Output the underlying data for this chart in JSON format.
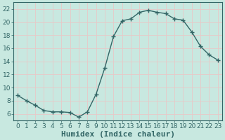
{
  "x": [
    0,
    1,
    2,
    3,
    4,
    5,
    6,
    7,
    8,
    9,
    10,
    11,
    12,
    13,
    14,
    15,
    16,
    17,
    18,
    19,
    20,
    21,
    22,
    23
  ],
  "y": [
    8.8,
    8.0,
    7.3,
    6.5,
    6.3,
    6.3,
    6.2,
    5.5,
    6.3,
    9.0,
    13.0,
    17.8,
    20.2,
    20.5,
    21.5,
    21.8,
    21.5,
    21.3,
    20.5,
    20.3,
    18.5,
    16.3,
    15.0,
    14.2
  ],
  "line_color": "#336666",
  "marker": "+",
  "marker_size": 4,
  "marker_linewidth": 1.0,
  "line_width": 1.0,
  "bg_color": "#c8e8e0",
  "grid_color": "#e8c8c8",
  "xlabel": "Humidex (Indice chaleur)",
  "xlim": [
    -0.5,
    23.5
  ],
  "ylim": [
    5.0,
    23.0
  ],
  "yticks": [
    6,
    8,
    10,
    12,
    14,
    16,
    18,
    20,
    22
  ],
  "xticks": [
    0,
    1,
    2,
    3,
    4,
    5,
    6,
    7,
    8,
    9,
    10,
    11,
    12,
    13,
    14,
    15,
    16,
    17,
    18,
    19,
    20,
    21,
    22,
    23
  ],
  "tick_fontsize": 6.5,
  "xlabel_fontsize": 8,
  "figsize": [
    3.2,
    2.0
  ],
  "dpi": 100
}
